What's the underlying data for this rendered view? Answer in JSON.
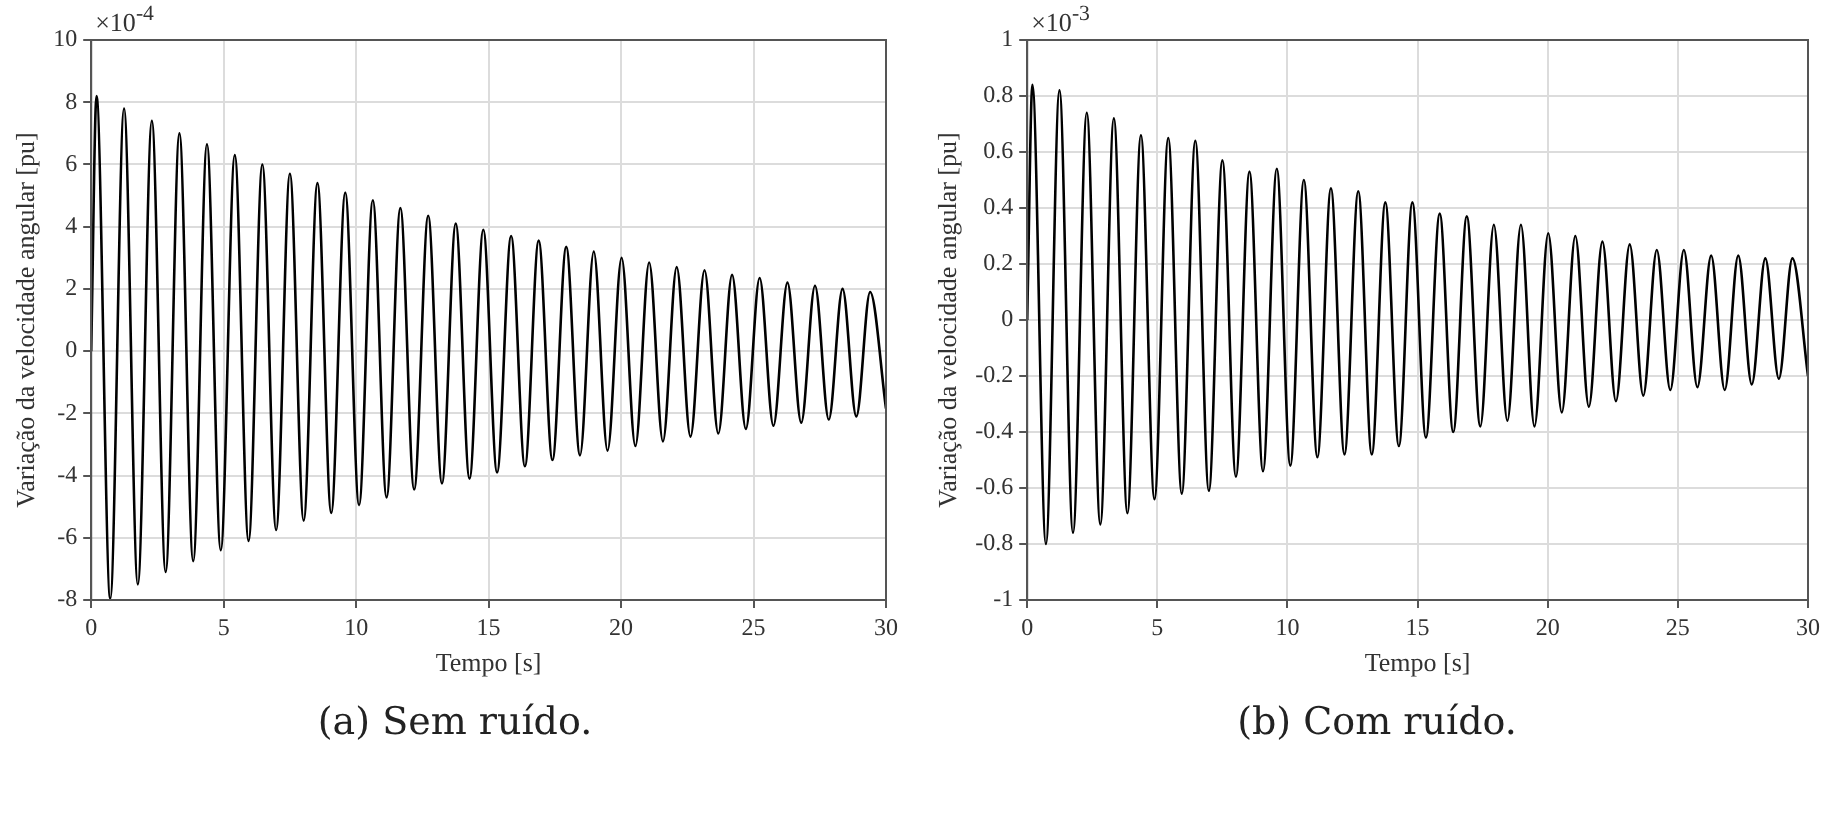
{
  "chart_data": [
    {
      "type": "line",
      "title": "(a) Sem ruído.",
      "xlabel": "Tempo [s]",
      "ylabel": "Variação da velocidade angular [pu]",
      "annotations": [
        "×10$^{-4}$"
      ],
      "x": [
        0,
        0.2,
        0.72,
        1.24,
        1.76,
        2.29,
        2.81,
        3.33,
        3.85,
        4.37,
        4.89,
        5.42,
        5.94,
        6.46,
        6.98,
        7.5,
        8.02,
        8.54,
        9.06,
        9.59,
        10.11,
        10.63,
        11.15,
        11.67,
        12.19,
        12.72,
        13.24,
        13.76,
        14.28,
        14.8,
        15.32,
        15.85,
        16.37,
        16.89,
        17.41,
        17.93,
        18.45,
        18.97,
        19.49,
        20.02,
        20.54,
        21.06,
        21.58,
        22.1,
        22.62,
        23.15,
        23.67,
        24.19,
        24.71,
        25.23,
        25.75,
        26.28,
        26.8,
        27.32,
        27.84,
        28.36,
        28.88,
        29.4,
        30
      ],
      "series": [
        {
          "color": "#000000",
          "values": [
            0,
            8.2,
            -7.95,
            7.8,
            -7.5,
            7.4,
            -7.1,
            7.0,
            -6.75,
            6.65,
            -6.4,
            6.3,
            -6.1,
            6.0,
            -5.75,
            5.7,
            -5.45,
            5.4,
            -5.2,
            5.1,
            -4.95,
            4.85,
            -4.7,
            4.6,
            -4.45,
            4.35,
            -4.25,
            4.1,
            -4.1,
            3.9,
            -3.9,
            3.7,
            -3.7,
            3.55,
            -3.5,
            3.35,
            -3.35,
            3.2,
            -3.2,
            3.0,
            -3.05,
            2.85,
            -2.9,
            2.7,
            -2.75,
            2.6,
            -2.65,
            2.45,
            -2.5,
            2.35,
            -2.4,
            2.2,
            -2.3,
            2.1,
            -2.2,
            2.0,
            -2.1,
            1.9,
            -1.85
          ]
        }
      ],
      "xlim": [
        0,
        30
      ],
      "xticks": [
        0,
        5,
        10,
        15,
        20,
        25,
        30
      ],
      "ylim": [
        -8,
        10
      ],
      "yticks": [
        -8,
        -6,
        -4,
        -2,
        0,
        2,
        4,
        6,
        8,
        10
      ],
      "grid": true,
      "marker": "none",
      "line_style": "solid",
      "legend": false
    },
    {
      "type": "line",
      "title": "(b) Com ruído.",
      "xlabel": "Tempo [s]",
      "ylabel": "Variação da velocidade angular [pu]",
      "annotations": [
        "×10$^{-3}$"
      ],
      "x": [
        0,
        0.2,
        0.72,
        1.24,
        1.76,
        2.29,
        2.81,
        3.33,
        3.85,
        4.37,
        4.89,
        5.42,
        5.94,
        6.46,
        6.98,
        7.5,
        8.02,
        8.54,
        9.06,
        9.59,
        10.11,
        10.63,
        11.15,
        11.67,
        12.19,
        12.72,
        13.24,
        13.76,
        14.28,
        14.8,
        15.32,
        15.85,
        16.37,
        16.89,
        17.41,
        17.93,
        18.45,
        18.97,
        19.49,
        20.02,
        20.54,
        21.06,
        21.58,
        22.1,
        22.62,
        23.15,
        23.67,
        24.19,
        24.71,
        25.23,
        25.75,
        26.28,
        26.8,
        27.32,
        27.84,
        28.36,
        28.88,
        29.4,
        30
      ],
      "series": [
        {
          "color": "#000000",
          "values": [
            0,
            0.84,
            -0.8,
            0.82,
            -0.76,
            0.74,
            -0.73,
            0.72,
            -0.69,
            0.66,
            -0.64,
            0.65,
            -0.62,
            0.64,
            -0.61,
            0.57,
            -0.56,
            0.53,
            -0.54,
            0.54,
            -0.52,
            0.5,
            -0.49,
            0.47,
            -0.48,
            0.46,
            -0.48,
            0.42,
            -0.45,
            0.42,
            -0.42,
            0.38,
            -0.4,
            0.37,
            -0.38,
            0.34,
            -0.36,
            0.34,
            -0.38,
            0.31,
            -0.33,
            0.3,
            -0.31,
            0.28,
            -0.29,
            0.27,
            -0.27,
            0.25,
            -0.25,
            0.25,
            -0.24,
            0.23,
            -0.25,
            0.23,
            -0.23,
            0.22,
            -0.21,
            0.22,
            -0.2
          ]
        }
      ],
      "xlim": [
        0,
        30
      ],
      "xticks": [
        0,
        5,
        10,
        15,
        20,
        25,
        30
      ],
      "ylim": [
        -1,
        1
      ],
      "yticks": [
        -1,
        -0.8,
        -0.6,
        -0.4,
        -0.2,
        0,
        0.2,
        0.4,
        0.6,
        0.8,
        1
      ],
      "grid": true,
      "marker": "none",
      "line_style": "solid",
      "legend": false
    }
  ]
}
